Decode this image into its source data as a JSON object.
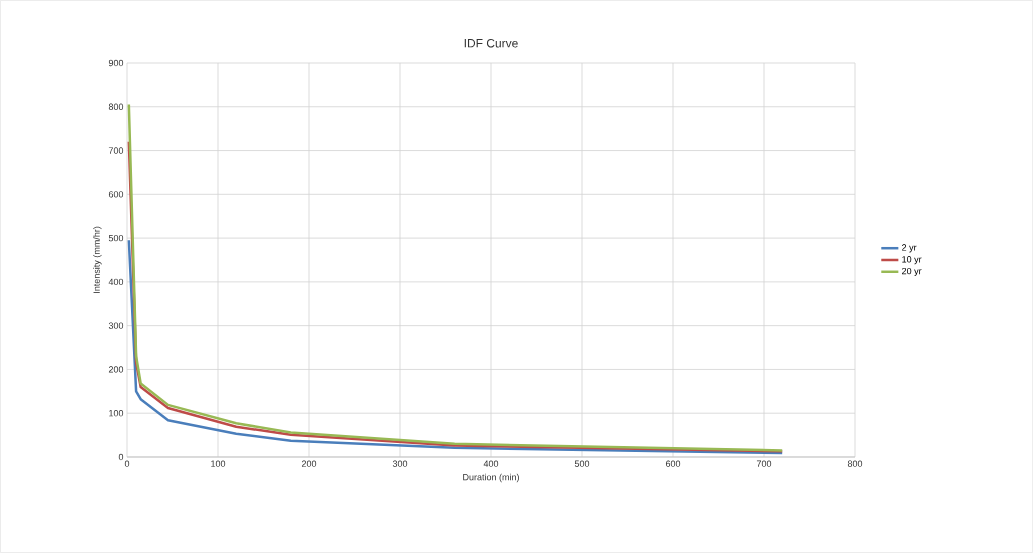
{
  "chart_data": {
    "type": "line",
    "title": "IDF Curve",
    "xlabel": "Duration (min)",
    "ylabel": "Intensity (mm/hr)",
    "x": [
      2,
      10,
      15,
      45,
      120,
      180,
      360,
      720
    ],
    "series": [
      {
        "name": "2 yr",
        "color": "#4a7ebb",
        "values": [
          495,
          150,
          132,
          84,
          53,
          37,
          21,
          9
        ]
      },
      {
        "name": "10 yr",
        "color": "#be4b48",
        "values": [
          720,
          215,
          160,
          112,
          69,
          51,
          26,
          13
        ]
      },
      {
        "name": "20 yr",
        "color": "#98b954",
        "values": [
          805,
          230,
          168,
          119,
          77,
          56,
          30,
          15
        ]
      }
    ],
    "xlim": [
      0,
      800
    ],
    "xticks": [
      0,
      100,
      200,
      300,
      400,
      500,
      600,
      700,
      800
    ],
    "ylim": [
      0,
      900
    ],
    "yticks": [
      0,
      100,
      200,
      300,
      400,
      500,
      600,
      700,
      800,
      900
    ],
    "grid": true,
    "legend": "right",
    "marker": "none",
    "line_style": "solid"
  }
}
